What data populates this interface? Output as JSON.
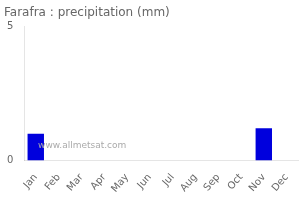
{
  "chart_data": {
    "type": "bar",
    "title": "Farafra : precipitation (mm)",
    "categories": [
      "Jan",
      "Feb",
      "Mar",
      "Apr",
      "May",
      "Jun",
      "Jul",
      "Aug",
      "Sep",
      "Oct",
      "Nov",
      "Dec"
    ],
    "values": [
      1.0,
      0,
      0,
      0,
      0,
      0,
      0,
      0,
      0,
      0,
      1.2,
      0
    ],
    "color": "#0000dd",
    "ylim": [
      0,
      5
    ],
    "yticks": [
      0,
      5
    ],
    "grid": false,
    "annotations": [
      "www.allmetsat.com"
    ]
  }
}
